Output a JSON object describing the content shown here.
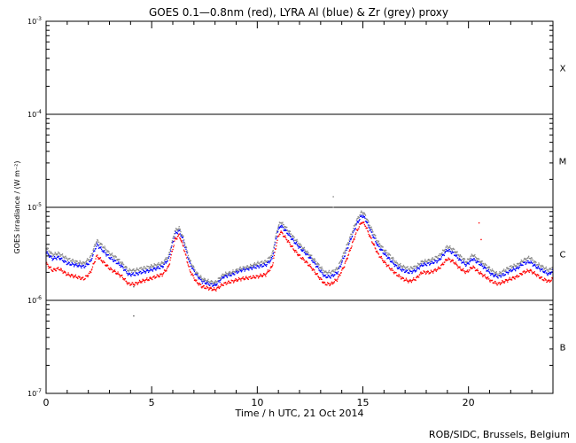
{
  "chart_data": {
    "type": "scatter",
    "title": "GOES 0.1—0.8nm (red), LYRA Al (blue) & Zr (grey) proxy",
    "xlabel": "Time / h UTC, 21 Oct 2014",
    "ylabel": "GOES irradiance / (W m⁻²)",
    "credit": "ROB/SIDC, Brussels, Belgium",
    "xlim": [
      0,
      24
    ],
    "ylim": [
      1e-07,
      0.001
    ],
    "yscale": "log",
    "x_ticks": [
      {
        "value": 0,
        "label": "0"
      },
      {
        "value": 5,
        "label": "5"
      },
      {
        "value": 10,
        "label": "10"
      },
      {
        "value": 15,
        "label": "15"
      },
      {
        "value": 20,
        "label": "20"
      }
    ],
    "y_ticks": [
      {
        "value": 0.001,
        "base": "10",
        "exp": "-3"
      },
      {
        "value": 0.0001,
        "base": "10",
        "exp": "-4"
      },
      {
        "value": 1e-05,
        "base": "10",
        "exp": "-5"
      },
      {
        "value": 1e-06,
        "base": "10",
        "exp": "-6"
      },
      {
        "value": 1e-07,
        "base": "10",
        "exp": "-7"
      }
    ],
    "class_lines": [
      0.0001,
      1e-05,
      1e-06
    ],
    "flare_classes": [
      {
        "label": "X",
        "value": 0.000316
      },
      {
        "label": "M",
        "value": 3.16e-05
      },
      {
        "label": "C",
        "value": 3.16e-06
      },
      {
        "label": "B",
        "value": 3.16e-07
      }
    ],
    "series": [
      {
        "color": "#ff0000",
        "x": [
          0.0,
          0.3,
          0.6,
          1.0,
          1.4,
          1.8,
          2.1,
          2.4,
          2.7,
          3.0,
          3.3,
          3.6,
          3.9,
          4.2,
          4.5,
          4.9,
          5.2,
          5.5,
          5.8,
          6.1,
          6.3,
          6.5,
          6.8,
          7.1,
          7.4,
          7.7,
          8.0,
          8.4,
          8.8,
          9.2,
          9.6,
          10.0,
          10.4,
          10.7,
          10.95,
          11.1,
          11.4,
          11.7,
          12.0,
          12.3,
          12.6,
          12.9,
          13.2,
          13.5,
          13.8,
          14.1,
          14.4,
          14.7,
          14.95,
          15.1,
          15.4,
          15.7,
          16.0,
          16.3,
          16.6,
          16.9,
          17.2,
          17.5,
          17.8,
          18.2,
          18.6,
          19.0,
          19.3,
          19.6,
          19.9,
          20.2,
          20.5,
          20.8,
          21.1,
          21.4,
          21.7,
          22.0,
          22.3,
          22.6,
          22.9,
          23.2,
          23.5,
          23.8,
          24.0
        ],
        "y": [
          2.5e-06,
          2.1e-06,
          2.2e-06,
          1.9e-06,
          1.8e-06,
          1.7e-06,
          2e-06,
          3e-06,
          2.6e-06,
          2.2e-06,
          2e-06,
          1.8e-06,
          1.5e-06,
          1.5e-06,
          1.6e-06,
          1.7e-06,
          1.8e-06,
          1.9e-06,
          2.3e-06,
          4.5e-06,
          5e-06,
          3.8e-06,
          2.1e-06,
          1.6e-06,
          1.4e-06,
          1.35e-06,
          1.3e-06,
          1.5e-06,
          1.6e-06,
          1.7e-06,
          1.75e-06,
          1.8e-06,
          1.9e-06,
          2.3e-06,
          4.5e-06,
          5.5e-06,
          4.5e-06,
          3.6e-06,
          3e-06,
          2.6e-06,
          2.2e-06,
          1.8e-06,
          1.5e-06,
          1.5e-06,
          1.7e-06,
          2.3e-06,
          3.5e-06,
          5.5e-06,
          7e-06,
          6.5e-06,
          4.5e-06,
          3.2e-06,
          2.6e-06,
          2.2e-06,
          1.9e-06,
          1.7e-06,
          1.6e-06,
          1.7e-06,
          2e-06,
          2e-06,
          2.2e-06,
          2.8e-06,
          2.6e-06,
          2.2e-06,
          2e-06,
          2.3e-06,
          2e-06,
          1.8e-06,
          1.6e-06,
          1.5e-06,
          1.6e-06,
          1.7e-06,
          1.8e-06,
          2e-06,
          2.1e-06,
          1.9e-06,
          1.7e-06,
          1.6e-06,
          1.7e-06
        ]
      },
      {
        "color": "#0000ff",
        "x": [
          0.0,
          0.3,
          0.6,
          1.0,
          1.4,
          1.8,
          2.1,
          2.4,
          2.7,
          3.0,
          3.3,
          3.6,
          3.9,
          4.2,
          4.5,
          4.9,
          5.2,
          5.5,
          5.8,
          6.1,
          6.3,
          6.5,
          6.8,
          7.1,
          7.4,
          7.7,
          8.0,
          8.4,
          8.8,
          9.2,
          9.6,
          10.0,
          10.4,
          10.7,
          10.95,
          11.1,
          11.4,
          11.7,
          12.0,
          12.3,
          12.6,
          12.9,
          13.2,
          13.5,
          13.8,
          14.1,
          14.4,
          14.7,
          14.95,
          15.1,
          15.4,
          15.7,
          16.0,
          16.3,
          16.6,
          16.9,
          17.2,
          17.5,
          17.8,
          18.2,
          18.6,
          19.0,
          19.3,
          19.6,
          19.9,
          20.2,
          20.5,
          20.8,
          21.1,
          21.4,
          21.7,
          22.0,
          22.3,
          22.6,
          22.9,
          23.2,
          23.5,
          23.8,
          24.0
        ],
        "y": [
          3.3e-06,
          2.8e-06,
          2.9e-06,
          2.5e-06,
          2.4e-06,
          2.3e-06,
          2.6e-06,
          4e-06,
          3.4e-06,
          2.9e-06,
          2.6e-06,
          2.3e-06,
          1.9e-06,
          1.9e-06,
          2e-06,
          2.1e-06,
          2.2e-06,
          2.3e-06,
          2.8e-06,
          5.2e-06,
          5.6e-06,
          4.4e-06,
          2.5e-06,
          1.9e-06,
          1.6e-06,
          1.5e-06,
          1.45e-06,
          1.8e-06,
          1.9e-06,
          2.1e-06,
          2.2e-06,
          2.3e-06,
          2.4e-06,
          2.8e-06,
          5.4e-06,
          6.4e-06,
          5.4e-06,
          4.4e-06,
          3.7e-06,
          3.2e-06,
          2.7e-06,
          2.2e-06,
          1.8e-06,
          1.8e-06,
          2e-06,
          2.9e-06,
          4.4e-06,
          6.6e-06,
          8.2e-06,
          7.6e-06,
          5.4e-06,
          3.9e-06,
          3.2e-06,
          2.7e-06,
          2.3e-06,
          2.1e-06,
          2e-06,
          2.1e-06,
          2.4e-06,
          2.5e-06,
          2.7e-06,
          3.5e-06,
          3.2e-06,
          2.7e-06,
          2.4e-06,
          2.8e-06,
          2.5e-06,
          2.2e-06,
          1.9e-06,
          1.8e-06,
          1.9e-06,
          2.1e-06,
          2.2e-06,
          2.5e-06,
          2.6e-06,
          2.3e-06,
          2.1e-06,
          1.9e-06,
          2.1e-06
        ]
      },
      {
        "color": "#888888",
        "x": [
          0.0,
          0.3,
          0.6,
          1.0,
          1.4,
          1.8,
          2.1,
          2.4,
          2.7,
          3.0,
          3.3,
          3.6,
          3.9,
          4.2,
          4.5,
          4.9,
          5.2,
          5.5,
          5.8,
          6.1,
          6.3,
          6.5,
          6.8,
          7.1,
          7.4,
          7.7,
          8.0,
          8.4,
          8.8,
          9.2,
          9.6,
          10.0,
          10.4,
          10.7,
          10.95,
          11.1,
          11.4,
          11.7,
          12.0,
          12.3,
          12.6,
          12.9,
          13.2,
          13.5,
          13.8,
          14.1,
          14.4,
          14.7,
          14.95,
          15.1,
          15.4,
          15.7,
          16.0,
          16.3,
          16.6,
          16.9,
          17.2,
          17.5,
          17.8,
          18.2,
          18.6,
          19.0,
          19.3,
          19.6,
          19.9,
          20.2,
          20.5,
          20.8,
          21.1,
          21.4,
          21.7,
          22.0,
          22.3,
          22.6,
          22.9,
          23.2,
          23.5,
          23.8,
          24.0
        ],
        "y": [
          3.7e-06,
          3.1e-06,
          3.2e-06,
          2.8e-06,
          2.6e-06,
          2.5e-06,
          2.9e-06,
          4.4e-06,
          3.8e-06,
          3.2e-06,
          2.9e-06,
          2.5e-06,
          2.1e-06,
          2.1e-06,
          2.2e-06,
          2.3e-06,
          2.4e-06,
          2.5e-06,
          3e-06,
          5.6e-06,
          6e-06,
          4.7e-06,
          2.7e-06,
          2e-06,
          1.7e-06,
          1.6e-06,
          1.55e-06,
          1.9e-06,
          2e-06,
          2.2e-06,
          2.3e-06,
          2.5e-06,
          2.6e-06,
          3.1e-06,
          5.9e-06,
          7e-06,
          5.9e-06,
          4.8e-06,
          4e-06,
          3.4e-06,
          2.9e-06,
          2.4e-06,
          2e-06,
          2e-06,
          2.2e-06,
          3.2e-06,
          4.8e-06,
          7.2e-06,
          9e-06,
          8.3e-06,
          5.9e-06,
          4.3e-06,
          3.5e-06,
          3e-06,
          2.5e-06,
          2.3e-06,
          2.2e-06,
          2.3e-06,
          2.6e-06,
          2.7e-06,
          3e-06,
          3.8e-06,
          3.5e-06,
          3e-06,
          2.6e-06,
          3.1e-06,
          2.7e-06,
          2.4e-06,
          2.1e-06,
          1.9e-06,
          2.1e-06,
          2.3e-06,
          2.4e-06,
          2.7e-06,
          2.9e-06,
          2.5e-06,
          2.3e-06,
          2.1e-06,
          2.3e-06
        ]
      }
    ],
    "outliers": [
      {
        "x": 4.15,
        "y": 6.8e-07,
        "color": "#555555"
      },
      {
        "x": 4.15,
        "y": 1.4e-06,
        "color": "#555555"
      },
      {
        "x": 13.6,
        "y": 1.3e-05,
        "color": "#888888"
      },
      {
        "x": 13.6,
        "y": 1e-05,
        "color": "#888888"
      },
      {
        "x": 20.5,
        "y": 6.8e-06,
        "color": "#ff0000"
      },
      {
        "x": 20.6,
        "y": 4.5e-06,
        "color": "#ff0000"
      }
    ]
  }
}
